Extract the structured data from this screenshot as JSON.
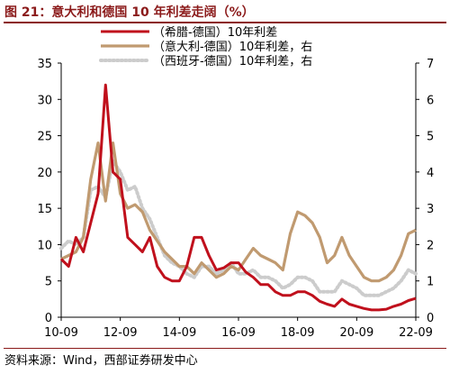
{
  "figure": {
    "title": "图 21：意大利和德国 10 年利差走阔（%）",
    "source": "资料来源：Wind，西部证券研发中心"
  },
  "colors": {
    "series_greece": "#c0101c",
    "series_italy": "#c09a70",
    "series_spain": "#cccccc",
    "title": "#8b1a1a"
  },
  "chart_data": {
    "type": "line",
    "title": "",
    "legend_position": "top-center",
    "grid": false,
    "x": [
      "2010-09",
      "2010-12",
      "2011-03",
      "2011-06",
      "2011-09",
      "2011-12",
      "2012-03",
      "2012-06",
      "2012-09",
      "2012-12",
      "2013-03",
      "2013-06",
      "2013-09",
      "2013-12",
      "2014-03",
      "2014-06",
      "2014-09",
      "2014-12",
      "2015-03",
      "2015-06",
      "2015-09",
      "2015-12",
      "2016-03",
      "2016-06",
      "2016-09",
      "2016-12",
      "2017-03",
      "2017-06",
      "2017-09",
      "2017-12",
      "2018-03",
      "2018-06",
      "2018-09",
      "2018-12",
      "2019-03",
      "2019-06",
      "2019-09",
      "2019-12",
      "2020-03",
      "2020-06",
      "2020-09",
      "2020-12",
      "2021-03",
      "2021-06",
      "2021-09",
      "2021-12",
      "2022-03",
      "2022-06",
      "2022-09"
    ],
    "x_tick_labels": [
      "10-09",
      "12-09",
      "14-09",
      "16-09",
      "18-09",
      "20-09",
      "22-09"
    ],
    "x_tick_positions": [
      "2010-09",
      "2012-09",
      "2014-09",
      "2016-09",
      "2018-09",
      "2020-09",
      "2022-09"
    ],
    "y_left": {
      "ticks": [
        0,
        5,
        10,
        15,
        20,
        25,
        30,
        35
      ],
      "ylim": [
        0,
        35
      ]
    },
    "y_right": {
      "ticks": [
        0,
        1,
        2,
        3,
        4,
        5,
        6,
        7
      ],
      "ylim": [
        0,
        7
      ]
    },
    "series": [
      {
        "name": "（希腊-德国）10年利差",
        "axis": "left",
        "color": "#c0101c",
        "values": [
          8,
          7,
          11,
          9,
          13,
          17,
          32,
          20,
          19,
          11,
          10,
          9,
          11,
          7,
          5.5,
          5,
          5,
          7,
          11,
          11,
          8.5,
          6.5,
          6.8,
          7.5,
          7.5,
          6.2,
          5.5,
          4.5,
          4.5,
          3.5,
          3,
          3,
          3.5,
          3.5,
          3,
          2.2,
          1.8,
          1.5,
          2.5,
          1.8,
          1.5,
          1.2,
          1,
          1,
          1.1,
          1.5,
          1.8,
          2.3,
          2.6
        ]
      },
      {
        "name": "（意大利-德国）10年利差，右",
        "axis": "right",
        "color": "#c09a70",
        "values": [
          1.6,
          1.7,
          1.8,
          2.2,
          3.8,
          4.8,
          3.2,
          4.8,
          3.4,
          3,
          3.1,
          2.9,
          2.4,
          2.1,
          1.8,
          1.6,
          1.4,
          1.4,
          1.2,
          1.5,
          1.3,
          1.1,
          1.2,
          1.4,
          1.3,
          1.6,
          1.9,
          1.7,
          1.6,
          1.5,
          1.3,
          2.3,
          2.9,
          2.8,
          2.6,
          2.2,
          1.5,
          1.7,
          2.2,
          1.7,
          1.4,
          1.1,
          1.0,
          1.0,
          1.1,
          1.3,
          1.7,
          2.3,
          2.4
        ]
      },
      {
        "name": "（西班牙-德国）10年利差，右",
        "axis": "right",
        "color": "#cccccc",
        "values": [
          1.9,
          2.1,
          2.0,
          2.2,
          3.5,
          3.6,
          3.3,
          4.3,
          4.0,
          3.5,
          3.6,
          3.0,
          2.7,
          2.2,
          1.7,
          1.5,
          1.4,
          1.2,
          1.1,
          1.4,
          1.4,
          1.2,
          1.3,
          1.5,
          1.2,
          1.2,
          1.3,
          1.1,
          1.1,
          1.0,
          0.8,
          0.9,
          1.1,
          1.1,
          1.0,
          0.7,
          0.7,
          0.7,
          1.0,
          0.9,
          0.8,
          0.6,
          0.6,
          0.6,
          0.7,
          0.8,
          1.0,
          1.3,
          1.2
        ]
      }
    ]
  }
}
